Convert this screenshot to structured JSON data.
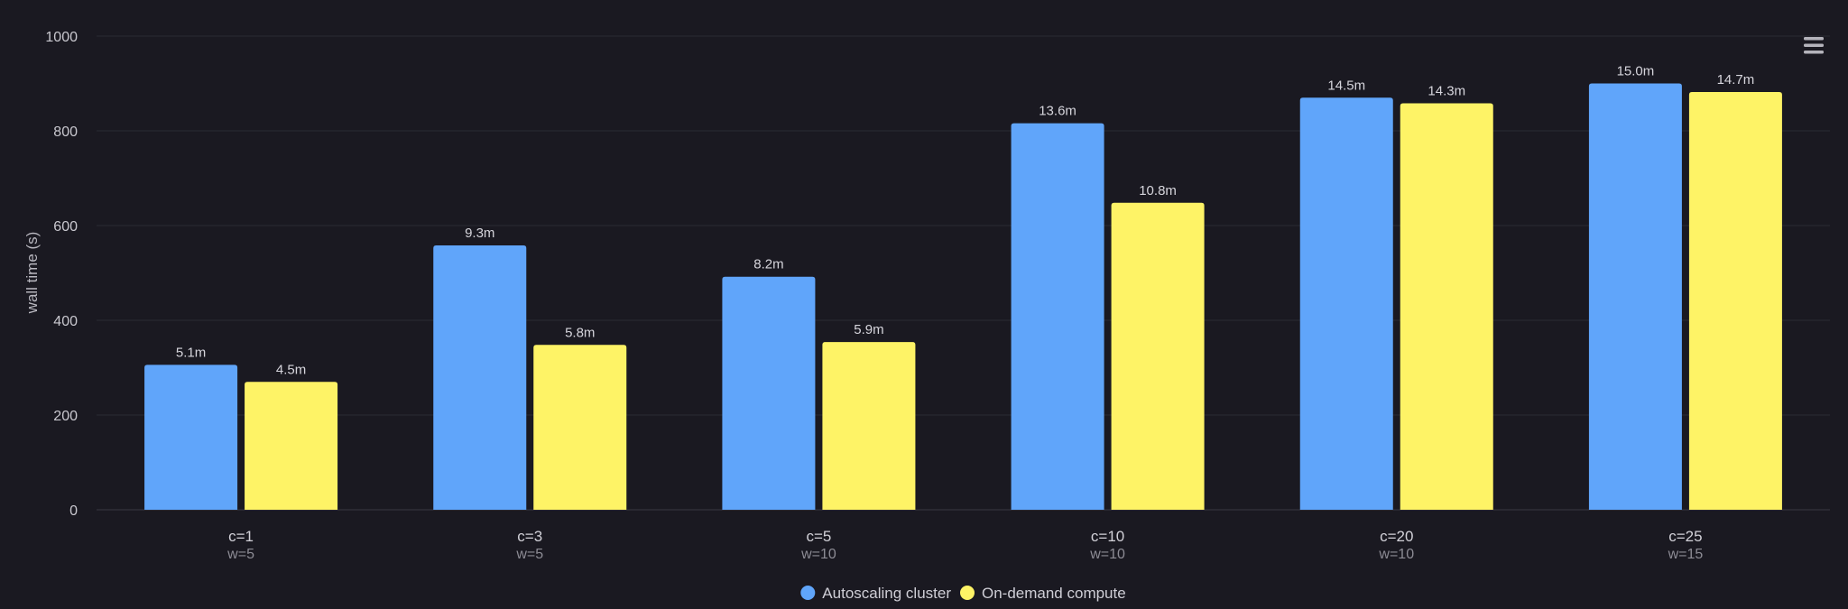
{
  "colors": {
    "background": "#1a1921",
    "autoscaling": "#60a5fa",
    "ondemand": "#fef366",
    "menu_icon": "#b4b3bb"
  },
  "menu": {
    "icon": "hamburger-menu-icon"
  },
  "chart_data": {
    "type": "bar",
    "ylabel": "wall time (s)",
    "xlabel": "",
    "ylim": [
      0,
      1000
    ],
    "yticks": [
      0,
      200,
      400,
      600,
      800,
      1000
    ],
    "grid": true,
    "legend_position": "bottom-center",
    "categories": [
      "c=1",
      "c=3",
      "c=5",
      "c=10",
      "c=20",
      "c=25"
    ],
    "category_sublabels": [
      "w=5",
      "w=5",
      "w=10",
      "w=10",
      "w=10",
      "w=15"
    ],
    "series": [
      {
        "name": "Autoscaling cluster",
        "color": "#60a5fa",
        "values": [
          306,
          558,
          492,
          816,
          870,
          900
        ],
        "labels": [
          "5.1m",
          "9.3m",
          "8.2m",
          "13.6m",
          "14.5m",
          "15.0m"
        ]
      },
      {
        "name": "On-demand compute",
        "color": "#fef366",
        "values": [
          270,
          348,
          354,
          648,
          858,
          882
        ],
        "labels": [
          "4.5m",
          "5.8m",
          "5.9m",
          "10.8m",
          "14.3m",
          "14.7m"
        ]
      }
    ]
  }
}
